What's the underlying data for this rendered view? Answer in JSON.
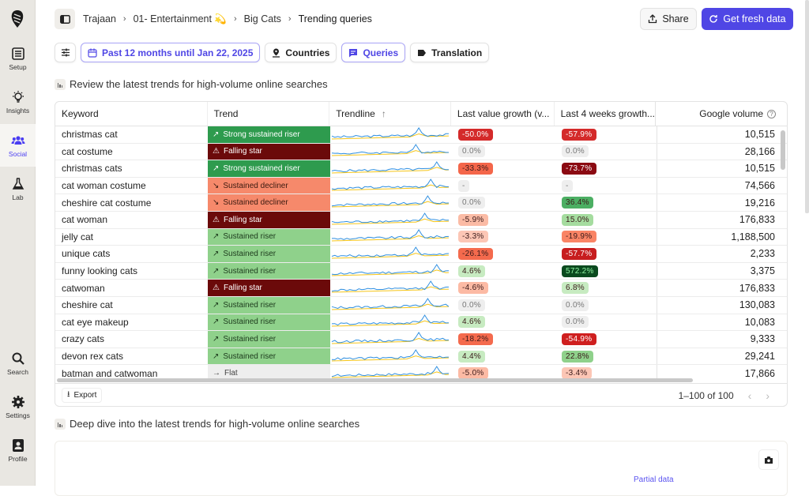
{
  "sidebar": {
    "items": [
      {
        "label": "Setup",
        "icon": "list-icon"
      },
      {
        "label": "Insights",
        "icon": "lightbulb-icon"
      },
      {
        "label": "Social",
        "icon": "users-icon",
        "active": true
      },
      {
        "label": "Lab",
        "icon": "flask-icon"
      },
      {
        "label": "Search",
        "icon": "search-icon"
      },
      {
        "label": "Settings",
        "icon": "gear-icon"
      },
      {
        "label": "Profile",
        "icon": "profile-icon"
      }
    ]
  },
  "breadcrumb": [
    "Trajaan",
    "01- Entertainment 💫",
    "Big Cats",
    "Trending queries"
  ],
  "header": {
    "share_label": "Share",
    "fresh_label": "Get fresh data",
    "accent": "#4f46e5"
  },
  "filters": {
    "date": "Past 12 months until Jan 22, 2025",
    "countries": "Countries",
    "queries": "Queries",
    "translation": "Translation"
  },
  "section1_title": "Review the latest trends for high-volume online searches",
  "section2_title": "Deep dive into the latest trends for high-volume online searches",
  "table": {
    "columns": [
      "Keyword",
      "Trend",
      "Trendline",
      "Last value growth (v...",
      "Last 4 weeks growth...",
      "Google volume"
    ],
    "rows": [
      {
        "keyword": "christmas cat",
        "trend": "Strong sustained riser",
        "last": "-50.0%",
        "lastColor": "#d42a2a",
        "w4": "-57.9%",
        "w4Color": "#d42a2a",
        "volume": "10,515"
      },
      {
        "keyword": "cat costume",
        "trend": "Falling star",
        "last": "0.0%",
        "lastColor": "#eeeeee",
        "w4": "0.0%",
        "w4Color": "#eeeeee",
        "volume": "28,166"
      },
      {
        "keyword": "christmas cats",
        "trend": "Strong sustained riser",
        "last": "-33.3%",
        "lastColor": "#f4664a",
        "w4": "-73.7%",
        "w4Color": "#8b0a12",
        "volume": "10,515"
      },
      {
        "keyword": "cat woman costume",
        "trend": "Sustained decliner",
        "last": "-",
        "lastColor": "#eeeeee",
        "w4": "-",
        "w4Color": "#eeeeee",
        "volume": "74,566"
      },
      {
        "keyword": "cheshire cat costume",
        "trend": "Sustained decliner",
        "last": "0.0%",
        "lastColor": "#eeeeee",
        "w4": "36.4%",
        "w4Color": "#4caf63",
        "volume": "19,216"
      },
      {
        "keyword": "cat woman",
        "trend": "Falling star",
        "last": "-5.9%",
        "lastColor": "#fbbba5",
        "w4": "15.0%",
        "w4Color": "#a5dc9f",
        "volume": "176,833"
      },
      {
        "keyword": "jelly cat",
        "trend": "Sustained riser",
        "last": "-3.3%",
        "lastColor": "#fcc6b5",
        "w4": "-19.9%",
        "w4Color": "#f98465",
        "volume": "1,188,500"
      },
      {
        "keyword": "unique cats",
        "trend": "Sustained riser",
        "last": "-26.1%",
        "lastColor": "#f46a4d",
        "w4": "-57.7%",
        "w4Color": "#c71d1f",
        "volume": "2,233"
      },
      {
        "keyword": "funny looking cats",
        "trend": "Sustained riser",
        "last": "4.6%",
        "lastColor": "#c7ebc1",
        "w4": "572.2%",
        "w4Color": "#0b4a1f",
        "volume": "3,375"
      },
      {
        "keyword": "catwoman",
        "trend": "Falling star",
        "last": "-4.6%",
        "lastColor": "#fcbaa4",
        "w4": "6.8%",
        "w4Color": "#c7ebc1",
        "volume": "176,833"
      },
      {
        "keyword": "cheshire cat",
        "trend": "Sustained riser",
        "last": "0.0%",
        "lastColor": "#eeeeee",
        "w4": "0.0%",
        "w4Color": "#eeeeee",
        "volume": "130,083"
      },
      {
        "keyword": "cat eye makeup",
        "trend": "Sustained riser",
        "last": "4.6%",
        "lastColor": "#c7ebc1",
        "w4": "0.0%",
        "w4Color": "#eeeeee",
        "volume": "10,083"
      },
      {
        "keyword": "crazy cats",
        "trend": "Sustained riser",
        "last": "-18.2%",
        "lastColor": "#f46a4d",
        "w4": "-54.9%",
        "w4Color": "#cf1f1f",
        "volume": "9,333"
      },
      {
        "keyword": "devon rex cats",
        "trend": "Sustained riser",
        "last": "4.4%",
        "lastColor": "#c7ebc1",
        "w4": "22.8%",
        "w4Color": "#8fd18b",
        "volume": "29,241"
      },
      {
        "keyword": "batman and catwoman",
        "trend": "Flat",
        "last": "-5.0%",
        "lastColor": "#fcbaa4",
        "w4": "-3.4%",
        "w4Color": "#fcc6b5",
        "volume": "17,866"
      }
    ],
    "export_label": "Export",
    "pagination": "1–100 of 100"
  },
  "trend_styles": {
    "Strong sustained riser": {
      "bg": "#2e9b4e",
      "fg": "#ffffff",
      "icon": "trending-up-icon"
    },
    "Falling star": {
      "bg": "#6b0a0a",
      "fg": "#ffffff",
      "icon": "warning-icon"
    },
    "Sustained decliner": {
      "bg": "#f6896b",
      "fg": "#3a1a10",
      "icon": "trending-down-icon"
    },
    "Sustained riser": {
      "bg": "#8fd18b",
      "fg": "#1c3a1c",
      "icon": "trending-up-icon"
    },
    "Flat": {
      "bg": "#eeeeee",
      "fg": "#444444",
      "icon": "arrow-right-icon"
    }
  },
  "chart": {
    "partial_label": "Partial data"
  }
}
